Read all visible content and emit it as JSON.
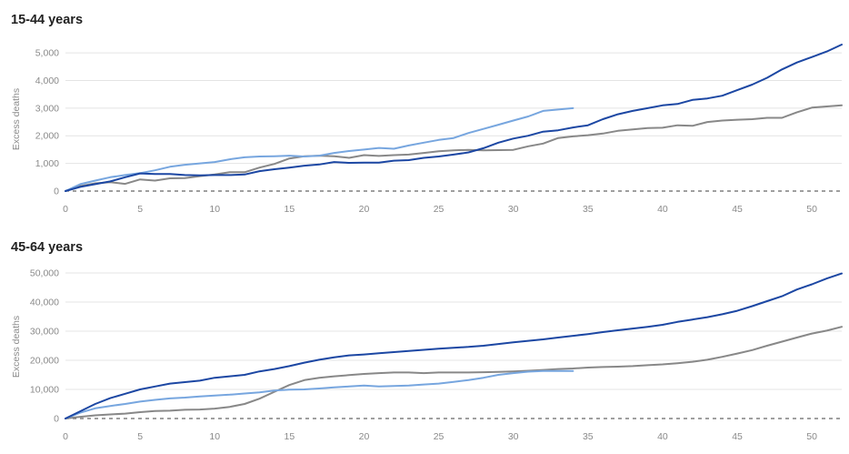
{
  "colors": {
    "dark_blue": "#1c47a3",
    "light_blue": "#77a6df",
    "grey": "#888888",
    "grid": "#e4e4e4",
    "zero_line": "#666666",
    "text": "#222222",
    "tick_text": "#8a8a8a"
  },
  "chart_data": [
    {
      "type": "line",
      "title": "15-44 years",
      "ylabel": "Excess deaths",
      "xlabel": "",
      "xlim": [
        0,
        52
      ],
      "ylim": [
        0,
        5300
      ],
      "x_ticks": [
        0,
        5,
        10,
        15,
        20,
        25,
        30,
        35,
        40,
        45,
        50
      ],
      "y_ticks": [
        0,
        1000,
        2000,
        3000,
        4000,
        5000
      ],
      "y_tick_labels": [
        "0",
        "1,000",
        "2,000",
        "3,000",
        "4,000",
        "5,000"
      ],
      "grid": true,
      "zero_line": "dashed",
      "series": [
        {
          "color": "light_blue",
          "x": [
            0,
            1,
            2,
            3,
            4,
            5,
            6,
            7,
            8,
            9,
            10,
            11,
            12,
            13,
            14,
            15,
            16,
            17,
            18,
            19,
            20,
            21,
            22,
            23,
            24,
            25,
            26,
            27,
            28,
            29,
            30,
            31,
            32,
            33,
            34
          ],
          "values": [
            0,
            250,
            380,
            500,
            580,
            650,
            750,
            880,
            950,
            1000,
            1050,
            1150,
            1220,
            1250,
            1260,
            1280,
            1250,
            1280,
            1380,
            1450,
            1500,
            1560,
            1530,
            1650,
            1750,
            1850,
            1920,
            2100,
            2250,
            2400,
            2550,
            2700,
            2900,
            2950,
            3000
          ]
        },
        {
          "color": "dark_blue",
          "x": [
            0,
            1,
            2,
            3,
            4,
            5,
            6,
            7,
            8,
            9,
            10,
            11,
            12,
            13,
            14,
            15,
            16,
            17,
            18,
            19,
            20,
            21,
            22,
            23,
            24,
            25,
            26,
            27,
            28,
            29,
            30,
            31,
            32,
            33,
            34,
            35,
            36,
            37,
            38,
            39,
            40,
            41,
            42,
            43,
            44,
            45,
            46,
            47,
            48,
            49,
            50,
            51,
            52
          ],
          "values": [
            0,
            150,
            250,
            350,
            500,
            640,
            620,
            620,
            580,
            570,
            580,
            580,
            600,
            720,
            790,
            850,
            920,
            960,
            1050,
            1020,
            1030,
            1030,
            1100,
            1120,
            1200,
            1250,
            1320,
            1400,
            1550,
            1750,
            1900,
            2000,
            2150,
            2200,
            2300,
            2380,
            2600,
            2780,
            2900,
            3000,
            3100,
            3150,
            3300,
            3350,
            3450,
            3650,
            3850,
            4100,
            4400,
            4650,
            4850,
            5050,
            5300
          ]
        },
        {
          "color": "grey",
          "x": [
            0,
            1,
            2,
            3,
            4,
            5,
            6,
            7,
            8,
            9,
            10,
            11,
            12,
            13,
            14,
            15,
            16,
            17,
            18,
            19,
            20,
            21,
            22,
            23,
            24,
            25,
            26,
            27,
            28,
            29,
            30,
            31,
            32,
            33,
            34,
            35,
            36,
            37,
            38,
            39,
            40,
            41,
            42,
            43,
            44,
            45,
            46,
            47,
            48,
            49,
            50,
            51,
            52
          ],
          "values": [
            0,
            180,
            280,
            320,
            260,
            420,
            380,
            460,
            470,
            540,
            600,
            680,
            680,
            850,
            980,
            1180,
            1260,
            1280,
            1260,
            1200,
            1300,
            1270,
            1300,
            1320,
            1380,
            1440,
            1470,
            1490,
            1470,
            1480,
            1490,
            1620,
            1720,
            1920,
            1980,
            2020,
            2080,
            2180,
            2230,
            2280,
            2290,
            2380,
            2360,
            2500,
            2550,
            2580,
            2600,
            2650,
            2650,
            2850,
            3020,
            3060,
            3100
          ]
        }
      ]
    },
    {
      "type": "line",
      "title": "45-64 years",
      "ylabel": "Excess deaths",
      "xlabel": "",
      "xlim": [
        0,
        52
      ],
      "ylim": [
        0,
        50000
      ],
      "x_ticks": [
        0,
        5,
        10,
        15,
        20,
        25,
        30,
        35,
        40,
        45,
        50
      ],
      "y_ticks": [
        0,
        10000,
        20000,
        30000,
        40000,
        50000
      ],
      "y_tick_labels": [
        "0",
        "10,000",
        "20,000",
        "30,000",
        "40,000",
        "50,000"
      ],
      "grid": true,
      "zero_line": "dashed",
      "series": [
        {
          "color": "light_blue",
          "x": [
            0,
            1,
            2,
            3,
            4,
            5,
            6,
            7,
            8,
            9,
            10,
            11,
            12,
            13,
            14,
            15,
            16,
            17,
            18,
            19,
            20,
            21,
            22,
            23,
            24,
            25,
            26,
            27,
            28,
            29,
            30,
            31,
            32,
            33,
            34
          ],
          "values": [
            0,
            2000,
            3500,
            4300,
            5000,
            5800,
            6400,
            6900,
            7200,
            7600,
            7900,
            8200,
            8600,
            9000,
            9600,
            9900,
            10000,
            10300,
            10700,
            11000,
            11300,
            11000,
            11200,
            11300,
            11700,
            12000,
            12600,
            13200,
            14000,
            15000,
            15600,
            16100,
            16300,
            16300,
            16300
          ]
        },
        {
          "color": "dark_blue",
          "x": [
            0,
            1,
            2,
            3,
            4,
            5,
            6,
            7,
            8,
            9,
            10,
            11,
            12,
            13,
            14,
            15,
            16,
            17,
            18,
            19,
            20,
            21,
            22,
            23,
            24,
            25,
            26,
            27,
            28,
            29,
            30,
            31,
            32,
            33,
            34,
            35,
            36,
            37,
            38,
            39,
            40,
            41,
            42,
            43,
            44,
            45,
            46,
            47,
            48,
            49,
            50,
            51,
            52
          ],
          "values": [
            0,
            2500,
            5000,
            7000,
            8500,
            10000,
            11000,
            12000,
            12500,
            13000,
            14000,
            14500,
            15000,
            16200,
            17000,
            18000,
            19200,
            20200,
            21000,
            21700,
            22000,
            22400,
            22800,
            23200,
            23600,
            24000,
            24300,
            24600,
            25000,
            25600,
            26200,
            26700,
            27200,
            27800,
            28400,
            29000,
            29700,
            30300,
            30900,
            31500,
            32200,
            33200,
            34000,
            34800,
            35800,
            37000,
            38600,
            40300,
            42000,
            44300,
            46100,
            48100,
            49800
          ]
        },
        {
          "color": "grey",
          "x": [
            0,
            1,
            2,
            3,
            4,
            5,
            6,
            7,
            8,
            9,
            10,
            11,
            12,
            13,
            14,
            15,
            16,
            17,
            18,
            19,
            20,
            21,
            22,
            23,
            24,
            25,
            26,
            27,
            28,
            29,
            30,
            31,
            32,
            33,
            34,
            35,
            36,
            37,
            38,
            39,
            40,
            41,
            42,
            43,
            44,
            45,
            46,
            47,
            48,
            49,
            50,
            51,
            52
          ],
          "values": [
            0,
            600,
            1100,
            1400,
            1700,
            2200,
            2600,
            2700,
            3000,
            3100,
            3400,
            4000,
            5000,
            6800,
            9200,
            11500,
            13200,
            14000,
            14500,
            14900,
            15300,
            15600,
            15800,
            15800,
            15600,
            15800,
            15800,
            15800,
            15900,
            16000,
            16200,
            16400,
            16700,
            17000,
            17200,
            17500,
            17700,
            17800,
            18000,
            18300,
            18600,
            19000,
            19500,
            20200,
            21200,
            22300,
            23500,
            25000,
            26400,
            27800,
            29200,
            30200,
            31500
          ]
        }
      ]
    }
  ]
}
